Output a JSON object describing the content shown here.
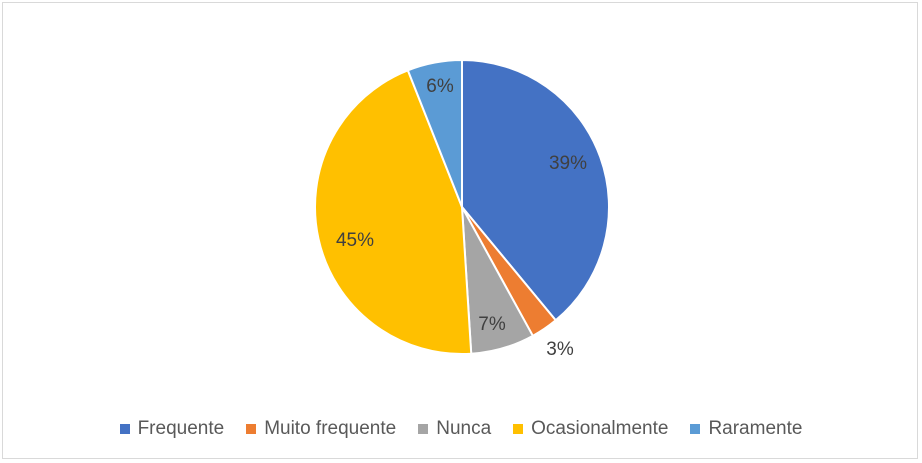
{
  "chart_data": {
    "type": "pie",
    "title": "",
    "slices": [
      {
        "name": "Frequente",
        "value": 39,
        "label": "39%",
        "color": "#4472C4"
      },
      {
        "name": "Muito frequente",
        "value": 3,
        "label": "3%",
        "color": "#ED7D31"
      },
      {
        "name": "Nunca",
        "value": 7,
        "label": "7%",
        "color": "#A5A5A5"
      },
      {
        "name": "Ocasionalmente",
        "value": 45,
        "label": "45%",
        "color": "#FFC000"
      },
      {
        "name": "Raramente",
        "value": 6,
        "label": "6%",
        "color": "#5B9BD5"
      }
    ],
    "legend_position": "bottom"
  },
  "legend": {
    "items": [
      {
        "label": "Frequente",
        "color": "#4472C4"
      },
      {
        "label": "Muito frequente",
        "color": "#ED7D31"
      },
      {
        "label": "Nunca",
        "color": "#A5A5A5"
      },
      {
        "label": "Ocasionalmente",
        "color": "#FFC000"
      },
      {
        "label": "Raramente",
        "color": "#5B9BD5"
      }
    ]
  }
}
